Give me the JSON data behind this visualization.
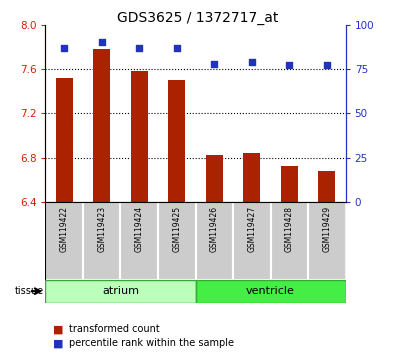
{
  "title": "GDS3625 / 1372717_at",
  "samples": [
    "GSM119422",
    "GSM119423",
    "GSM119424",
    "GSM119425",
    "GSM119426",
    "GSM119427",
    "GSM119428",
    "GSM119429"
  ],
  "transformed_counts": [
    7.52,
    7.78,
    7.58,
    7.5,
    6.82,
    6.84,
    6.72,
    6.68
  ],
  "percentile_ranks": [
    87,
    90,
    87,
    87,
    78,
    79,
    77,
    77
  ],
  "ylim_left": [
    6.4,
    8.0
  ],
  "ylim_right": [
    0,
    100
  ],
  "yticks_left": [
    6.4,
    6.8,
    7.2,
    7.6,
    8.0
  ],
  "yticks_right": [
    0,
    25,
    50,
    75,
    100
  ],
  "bar_color": "#aa2200",
  "dot_color": "#2233bb",
  "bar_bottom": 6.4,
  "atrium_color": "#bbffbb",
  "ventricle_color": "#44ee44",
  "sample_box_color": "#cccccc",
  "grid_linestyle": ":",
  "grid_color": "black",
  "grid_linewidth": 0.8,
  "background_color": "#ffffff",
  "tick_color_left": "#cc2200",
  "tick_color_right": "#2233bb",
  "bar_width": 0.45,
  "dot_size": 20,
  "title_fontsize": 10,
  "tick_fontsize": 7.5,
  "sample_fontsize": 5.5,
  "legend_fontsize": 7,
  "tissue_fontsize": 7,
  "group_fontsize": 8
}
